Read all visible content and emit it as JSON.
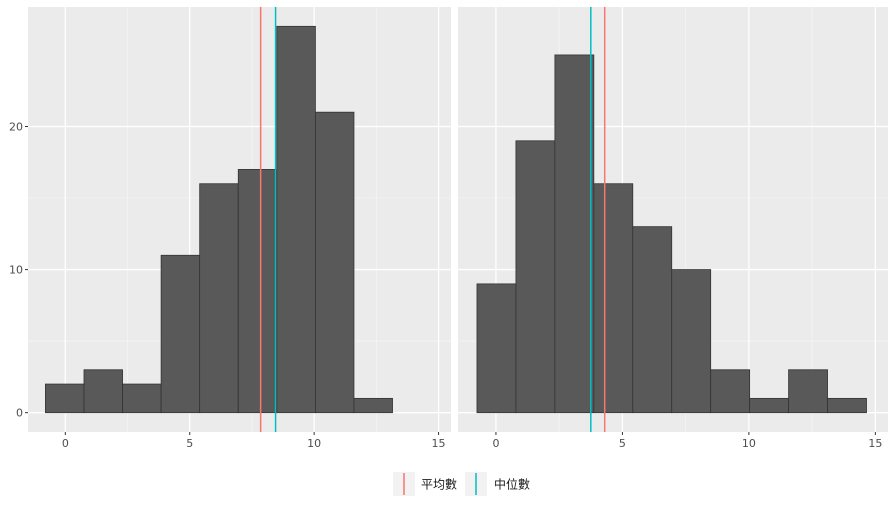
{
  "chart_data": {
    "type": "bar",
    "shared_y_axis": {
      "ylim": [
        -1.35,
        28.35
      ],
      "ticks": [
        0,
        10,
        20
      ]
    },
    "panels": [
      {
        "xlim": [
          -1.5,
          15.5
        ],
        "x_ticks": [
          0,
          5,
          10,
          15
        ],
        "bin_edges": [
          -0.8,
          0.75,
          2.3,
          3.85,
          5.4,
          6.95,
          8.5,
          10.05,
          11.6,
          13.15
        ],
        "counts": [
          2,
          3,
          2,
          11,
          16,
          17,
          27,
          21,
          1
        ],
        "mean": 7.85,
        "median": 8.45
      },
      {
        "xlim": [
          -1.5,
          15.5
        ],
        "x_ticks": [
          0,
          5,
          10,
          15
        ],
        "bin_edges": [
          -0.75,
          0.79,
          2.33,
          3.87,
          5.41,
          6.95,
          8.49,
          10.03,
          11.57,
          13.11,
          14.65
        ],
        "counts": [
          9,
          19,
          25,
          16,
          13,
          10,
          3,
          1,
          3,
          1
        ],
        "mean": 4.3,
        "median": 3.75
      }
    ],
    "legend": {
      "position": "bottom",
      "items": [
        {
          "label": "平均數",
          "color": "#F8766D"
        },
        {
          "label": "中位數",
          "color": "#00BFC4"
        }
      ]
    },
    "style": {
      "panel_background": "#EBEBEB",
      "grid_major": "#FFFFFF",
      "bar_fill": "#595959",
      "bar_outline": "#333333",
      "grid": true
    }
  }
}
